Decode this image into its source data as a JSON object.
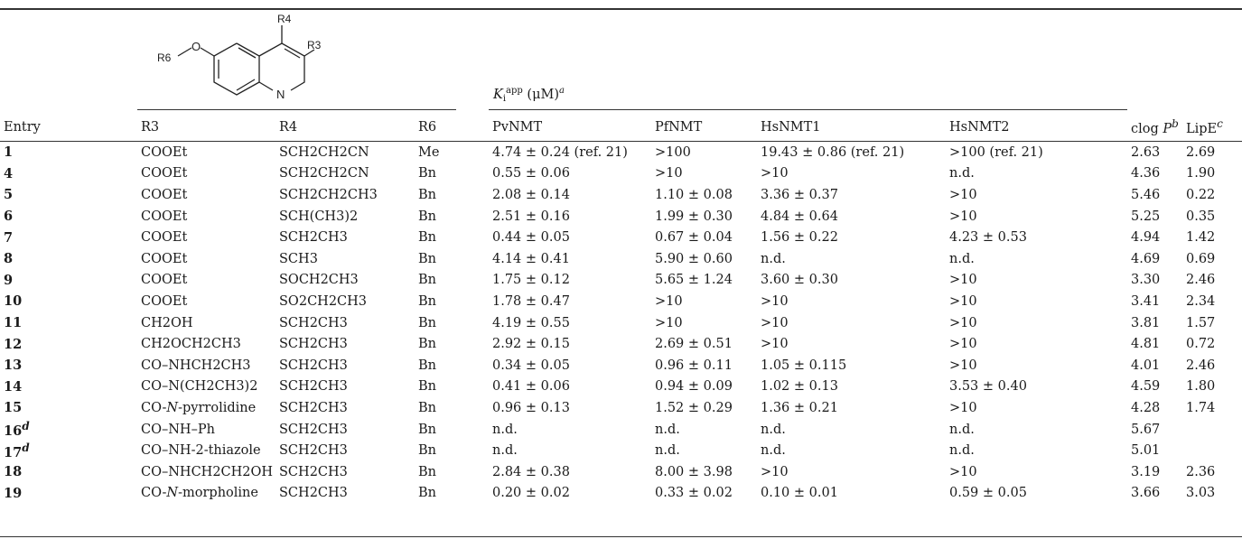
{
  "structure_labels": {
    "r4": "R4",
    "r3": "R3",
    "r6": "R6",
    "o": "O",
    "n": "N"
  },
  "header": {
    "ki_group": "Ki app (μM) a",
    "ki_main": "K",
    "ki_sub": "i",
    "ki_sup": "app",
    "ki_unit": " (μM)",
    "ki_note": "a",
    "columns": {
      "entry": "Entry",
      "r3": "R",
      "r3_sub": "3",
      "r4": "R",
      "r4_sub": "4",
      "r6": "R",
      "r6_sub": "6",
      "pvnmt": "PvNMT",
      "pfnmt": "PfNMT",
      "hsnmt1": "HsNMT1",
      "hsnmt2": "HsNMT2",
      "clogp": "clog ",
      "clogp_p": "P",
      "clogp_note": "b",
      "lipe": "LipE",
      "lipe_note": "c"
    }
  },
  "rows": [
    {
      "entry": "1",
      "note": "",
      "r3": "COOEt",
      "r4": "SCH2CH2CN",
      "r6": "Me",
      "pv": "4.74 ± 0.24 (ref. 21)",
      "pf": ">100",
      "hs1": "19.43 ± 0.86 (ref. 21)",
      "hs2": ">100 (ref. 21)",
      "clogp": "2.63",
      "lipe": "2.69"
    },
    {
      "entry": "4",
      "note": "",
      "r3": "COOEt",
      "r4": "SCH2CH2CN",
      "r6": "Bn",
      "pv": "0.55 ± 0.06",
      "pf": ">10",
      "hs1": ">10",
      "hs2": "n.d.",
      "clogp": "4.36",
      "lipe": "1.90"
    },
    {
      "entry": "5",
      "note": "",
      "r3": "COOEt",
      "r4": "SCH2CH2CH3",
      "r6": "Bn",
      "pv": "2.08 ± 0.14",
      "pf": "1.10 ± 0.08",
      "hs1": "3.36 ± 0.37",
      "hs2": ">10",
      "clogp": "5.46",
      "lipe": "0.22"
    },
    {
      "entry": "6",
      "note": "",
      "r3": "COOEt",
      "r4": "SCH(CH3)2",
      "r6": "Bn",
      "pv": "2.51 ± 0.16",
      "pf": "1.99 ± 0.30",
      "hs1": "4.84 ± 0.64",
      "hs2": ">10",
      "clogp": "5.25",
      "lipe": "0.35"
    },
    {
      "entry": "7",
      "note": "",
      "r3": "COOEt",
      "r4": "SCH2CH3",
      "r6": "Bn",
      "pv": "0.44 ± 0.05",
      "pf": "0.67 ± 0.04",
      "hs1": "1.56 ± 0.22",
      "hs2": "4.23 ± 0.53",
      "clogp": "4.94",
      "lipe": "1.42"
    },
    {
      "entry": "8",
      "note": "",
      "r3": "COOEt",
      "r4": "SCH3",
      "r6": "Bn",
      "pv": "4.14 ± 0.41",
      "pf": "5.90 ± 0.60",
      "hs1": "n.d.",
      "hs2": "n.d.",
      "clogp": "4.69",
      "lipe": "0.69"
    },
    {
      "entry": "9",
      "note": "",
      "r3": "COOEt",
      "r4": "SOCH2CH3",
      "r6": "Bn",
      "pv": "1.75 ± 0.12",
      "pf": "5.65 ± 1.24",
      "hs1": "3.60 ± 0.30",
      "hs2": ">10",
      "clogp": "3.30",
      "lipe": "2.46"
    },
    {
      "entry": "10",
      "note": "",
      "r3": "COOEt",
      "r4": "SO2CH2CH3",
      "r6": "Bn",
      "pv": "1.78 ± 0.47",
      "pf": ">10",
      "hs1": ">10",
      "hs2": ">10",
      "clogp": "3.41",
      "lipe": "2.34"
    },
    {
      "entry": "11",
      "note": "",
      "r3": "CH2OH",
      "r4": "SCH2CH3",
      "r6": "Bn",
      "pv": "4.19 ± 0.55",
      "pf": ">10",
      "hs1": ">10",
      "hs2": ">10",
      "clogp": "3.81",
      "lipe": "1.57"
    },
    {
      "entry": "12",
      "note": "",
      "r3": "CH2OCH2CH3",
      "r4": "SCH2CH3",
      "r6": "Bn",
      "pv": "2.92 ± 0.15",
      "pf": "2.69 ± 0.51",
      "hs1": ">10",
      "hs2": ">10",
      "clogp": "4.81",
      "lipe": "0.72"
    },
    {
      "entry": "13",
      "note": "",
      "r3": "CO–NHCH2CH3",
      "r4": "SCH2CH3",
      "r6": "Bn",
      "pv": "0.34 ± 0.05",
      "pf": "0.96 ± 0.11",
      "hs1": "1.05 ± 0.115",
      "hs2": ">10",
      "clogp": "4.01",
      "lipe": "2.46"
    },
    {
      "entry": "14",
      "note": "",
      "r3": "CO–N(CH2CH3)2",
      "r4": "SCH2CH3",
      "r6": "Bn",
      "pv": "0.41 ± 0.06",
      "pf": "0.94 ± 0.09",
      "hs1": "1.02 ± 0.13",
      "hs2": "3.53 ± 0.40",
      "clogp": "4.59",
      "lipe": "1.80"
    },
    {
      "entry": "15",
      "note": "",
      "r3": "CO-N-pyrrolidine",
      "r4": "SCH2CH3",
      "r6": "Bn",
      "pv": "0.96 ± 0.13",
      "pf": "1.52 ± 0.29",
      "hs1": "1.36 ± 0.21",
      "hs2": ">10",
      "clogp": "4.28",
      "lipe": "1.74"
    },
    {
      "entry": "16",
      "note": "d",
      "r3": "CO–NH–Ph",
      "r4": "SCH2CH3",
      "r6": "Bn",
      "pv": "n.d.",
      "pf": "n.d.",
      "hs1": "n.d.",
      "hs2": "n.d.",
      "clogp": "5.67",
      "lipe": ""
    },
    {
      "entry": "17",
      "note": "d",
      "r3": "CO–NH-2-thiazole",
      "r4": "SCH2CH3",
      "r6": "Bn",
      "pv": "n.d.",
      "pf": "n.d.",
      "hs1": "n.d.",
      "hs2": "n.d.",
      "clogp": "5.01",
      "lipe": ""
    },
    {
      "entry": "18",
      "note": "",
      "r3": "CO–NHCH2CH2OH",
      "r4": "SCH2CH3",
      "r6": "Bn",
      "pv": "2.84 ± 0.38",
      "pf": "8.00 ± 3.98",
      "hs1": ">10",
      "hs2": ">10",
      "clogp": "3.19",
      "lipe": "2.36"
    },
    {
      "entry": "19",
      "note": "",
      "r3": "CO-N-morpholine",
      "r4": "SCH2CH3",
      "r6": "Bn",
      "pv": "0.20 ± 0.02",
      "pf": "0.33 ± 0.02",
      "hs1": "0.10 ± 0.01",
      "hs2": "0.59 ± 0.05",
      "clogp": "3.66",
      "lipe": "3.03"
    }
  ]
}
